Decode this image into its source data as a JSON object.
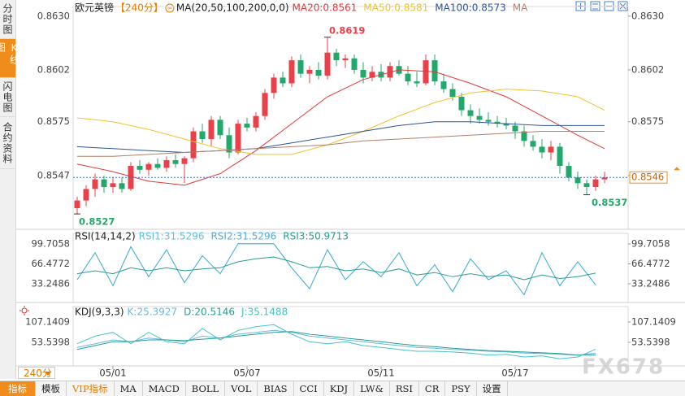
{
  "sidebar": {
    "tabs": [
      "分时图",
      "K线图",
      "闪电图",
      "合约资料"
    ],
    "active": 1
  },
  "period_selector": "240分",
  "toolbar": {
    "items": [
      "指标",
      "模板",
      "VIP指标",
      "MA",
      "MACD",
      "BOLL",
      "VOL",
      "BIAS",
      "CCI",
      "KDJ",
      "LW&",
      "RSI",
      "CR",
      "PSY",
      "设置"
    ],
    "active": 0
  },
  "watermark": "FX678",
  "chart_data": [
    {
      "type": "candlestick",
      "title": "欧元英镑",
      "period": "【240分】",
      "indicator": "MA(20,50,100,200,0,0)",
      "xlim": [
        -0.5,
        59.5
      ],
      "xticks": [
        {
          "value": 4,
          "label": "05/01"
        },
        {
          "value": 19,
          "label": "05/07"
        },
        {
          "value": 34,
          "label": "05/11"
        },
        {
          "value": 49,
          "label": "05/17"
        }
      ],
      "ylim": [
        0.8519,
        0.8635
      ],
      "yticks": [
        0.8547,
        0.8575,
        0.8602,
        {
          "value": 0.863,
          "label": "0.8630"
        }
      ],
      "up_color": "#e8414a",
      "down_color": "#23a86b",
      "open": [
        0.853,
        0.8534,
        0.854,
        0.8545,
        0.8541,
        0.8543,
        0.854,
        0.8552,
        0.855,
        0.8553,
        0.8551,
        0.8555,
        0.8553,
        0.8556,
        0.857,
        0.8566,
        0.8576,
        0.8568,
        0.8559,
        0.8574,
        0.8572,
        0.8578,
        0.859,
        0.8598,
        0.8595,
        0.8607,
        0.86,
        0.8602,
        0.8599,
        0.8611,
        0.8607,
        0.8608,
        0.8602,
        0.8598,
        0.8601,
        0.8598,
        0.8604,
        0.86,
        0.8596,
        0.8595,
        0.8607,
        0.8596,
        0.8592,
        0.8588,
        0.8581,
        0.8578,
        0.8576,
        0.8575,
        0.8574,
        0.8573,
        0.857,
        0.8565,
        0.8562,
        0.8559,
        0.8562,
        0.8552,
        0.8546,
        0.8543,
        0.8541,
        0.8545
      ],
      "high": [
        0.8536,
        0.8542,
        0.8548,
        0.8547,
        0.8546,
        0.8546,
        0.8554,
        0.8555,
        0.8554,
        0.8556,
        0.8557,
        0.8558,
        0.8557,
        0.8572,
        0.8574,
        0.8578,
        0.8578,
        0.8572,
        0.8576,
        0.8577,
        0.858,
        0.8592,
        0.86,
        0.8601,
        0.8609,
        0.861,
        0.8604,
        0.8606,
        0.8619,
        0.8613,
        0.861,
        0.861,
        0.8606,
        0.8604,
        0.8605,
        0.8606,
        0.8607,
        0.8604,
        0.8601,
        0.861,
        0.861,
        0.86,
        0.8595,
        0.859,
        0.8584,
        0.8582,
        0.858,
        0.8578,
        0.8577,
        0.8575,
        0.8573,
        0.8568,
        0.8566,
        0.8565,
        0.8564,
        0.8554,
        0.8549,
        0.8545,
        0.8547,
        0.8549
      ],
      "low": [
        0.8527,
        0.8531,
        0.8536,
        0.8538,
        0.8538,
        0.8538,
        0.8539,
        0.8548,
        0.8547,
        0.855,
        0.8549,
        0.8551,
        0.8543,
        0.8554,
        0.8564,
        0.8562,
        0.8566,
        0.8556,
        0.8558,
        0.857,
        0.857,
        0.8576,
        0.8587,
        0.8593,
        0.8593,
        0.8598,
        0.8595,
        0.8597,
        0.8597,
        0.8604,
        0.8603,
        0.86,
        0.8595,
        0.8596,
        0.8596,
        0.8596,
        0.8599,
        0.8594,
        0.8593,
        0.8594,
        0.8594,
        0.859,
        0.8586,
        0.8578,
        0.8574,
        0.8574,
        0.8573,
        0.8572,
        0.8571,
        0.8566,
        0.8562,
        0.856,
        0.8556,
        0.8555,
        0.8548,
        0.8544,
        0.854,
        0.8537,
        0.8539,
        0.8543
      ],
      "close": [
        0.8534,
        0.854,
        0.8545,
        0.8541,
        0.8543,
        0.854,
        0.8552,
        0.855,
        0.8553,
        0.8551,
        0.8555,
        0.8553,
        0.8556,
        0.857,
        0.8566,
        0.8576,
        0.8568,
        0.8559,
        0.8574,
        0.8572,
        0.8578,
        0.859,
        0.8598,
        0.8595,
        0.8607,
        0.86,
        0.8602,
        0.8599,
        0.8611,
        0.8607,
        0.8608,
        0.8602,
        0.8598,
        0.8601,
        0.8598,
        0.8604,
        0.86,
        0.8596,
        0.8595,
        0.8607,
        0.8596,
        0.8592,
        0.8588,
        0.8581,
        0.8578,
        0.8576,
        0.8575,
        0.8574,
        0.8573,
        0.857,
        0.8565,
        0.8562,
        0.8559,
        0.8562,
        0.8552,
        0.8546,
        0.8543,
        0.8541,
        0.8545,
        0.8546
      ],
      "series": [
        {
          "name": "MA20:0.8561",
          "color": "#e03a3a",
          "x": [
            0,
            4,
            8,
            12,
            16,
            20,
            24,
            28,
            32,
            36,
            40,
            44,
            48,
            52,
            56,
            59
          ],
          "values": [
            0.8553,
            0.8549,
            0.8544,
            0.8542,
            0.8548,
            0.856,
            0.8574,
            0.8588,
            0.8597,
            0.8602,
            0.8601,
            0.8595,
            0.8588,
            0.8578,
            0.8568,
            0.8561
          ]
        },
        {
          "name": "MA50:0.8581",
          "color": "#f2c12e",
          "x": [
            0,
            4,
            8,
            12,
            16,
            20,
            24,
            28,
            32,
            36,
            40,
            44,
            48,
            52,
            56,
            59
          ],
          "values": [
            0.8577,
            0.8575,
            0.8571,
            0.8566,
            0.8561,
            0.8558,
            0.8558,
            0.8563,
            0.857,
            0.8578,
            0.8585,
            0.859,
            0.8592,
            0.8591,
            0.8588,
            0.8581
          ]
        },
        {
          "name": "MA100:0.8573",
          "color": "#2f5596",
          "x": [
            0,
            4,
            8,
            12,
            16,
            20,
            24,
            28,
            32,
            36,
            40,
            44,
            48,
            52,
            56,
            59
          ],
          "values": [
            0.8562,
            0.8561,
            0.856,
            0.8559,
            0.856,
            0.8561,
            0.8564,
            0.8567,
            0.857,
            0.8573,
            0.8575,
            0.8575,
            0.8574,
            0.8573,
            0.8573,
            0.8573
          ]
        },
        {
          "name": "MA",
          "color": "#b0806a",
          "x": [
            0,
            4,
            8,
            12,
            16,
            20,
            24,
            28,
            32,
            36,
            40,
            44,
            48,
            52,
            56,
            59
          ],
          "values": [
            0.8557,
            0.8557,
            0.8558,
            0.8559,
            0.856,
            0.8561,
            0.8562,
            0.8563,
            0.8565,
            0.8566,
            0.8567,
            0.8568,
            0.8569,
            0.857,
            0.857,
            0.857
          ]
        }
      ],
      "last_price": 0.8546,
      "annotations": [
        {
          "x": 28,
          "value": 0.8619,
          "color": "#e8414a"
        },
        {
          "x": 0,
          "value": 0.8527,
          "color": "#23a86b"
        },
        {
          "x": 57,
          "value": 0.8537,
          "color": "#23a86b"
        }
      ]
    },
    {
      "type": "line",
      "title": "RSI(14,14,2)",
      "xlim": [
        -0.5,
        59.5
      ],
      "x": [
        0,
        2,
        4,
        6,
        8,
        10,
        12,
        14,
        16,
        18,
        20,
        22,
        24,
        26,
        28,
        30,
        32,
        34,
        36,
        38,
        40,
        42,
        44,
        46,
        48,
        50,
        52,
        54,
        56,
        58
      ],
      "ylim": [
        2.06,
        117.33
      ],
      "yticks": [
        33.2486,
        66.4772,
        99.7058
      ],
      "series": [
        {
          "name": "RSI1:31.5296",
          "color": "#5cc3e0",
          "values": [
            40,
            85,
            30,
            95,
            45,
            90,
            35,
            80,
            50,
            100,
            100,
            100,
            60,
            25,
            90,
            40,
            70,
            45,
            85,
            30,
            65,
            20,
            75,
            40,
            55,
            15,
            85,
            30,
            70,
            31.5
          ]
        },
        {
          "name": "RSI2:31.5296",
          "color": "#4fb0d6",
          "values": [
            40,
            85,
            30,
            95,
            45,
            90,
            35,
            80,
            50,
            100,
            100,
            100,
            60,
            25,
            90,
            40,
            70,
            45,
            85,
            30,
            65,
            20,
            75,
            40,
            55,
            15,
            85,
            30,
            70,
            31.5
          ]
        },
        {
          "name": "RSI3:50.9713",
          "color": "#2a9d8f",
          "values": [
            50,
            55,
            50,
            60,
            55,
            60,
            55,
            58,
            60,
            70,
            75,
            78,
            70,
            60,
            62,
            55,
            58,
            52,
            58,
            48,
            52,
            45,
            50,
            45,
            48,
            40,
            48,
            42,
            45,
            51
          ]
        }
      ]
    },
    {
      "type": "line",
      "title": "KDJ(9,3,3)",
      "xlim": [
        -0.5,
        59.5
      ],
      "x": [
        0,
        2,
        4,
        6,
        8,
        10,
        12,
        14,
        16,
        18,
        20,
        22,
        24,
        26,
        28,
        30,
        32,
        34,
        36,
        38,
        40,
        42,
        44,
        46,
        48,
        50,
        52,
        54,
        56,
        58
      ],
      "ylim": [
        -8.6,
        147.9
      ],
      "yticks": [
        53.5398,
        107.1409
      ],
      "series": [
        {
          "name": "K:25.3927",
          "color": "#6ab7e3",
          "values": [
            40,
            50,
            60,
            55,
            65,
            60,
            55,
            70,
            65,
            75,
            80,
            85,
            80,
            70,
            65,
            60,
            55,
            50,
            45,
            40,
            38,
            35,
            33,
            30,
            28,
            25,
            24,
            22,
            20,
            25.4
          ]
        },
        {
          "name": "D:20.5146",
          "color": "#2a9d8f",
          "values": [
            35,
            45,
            55,
            55,
            60,
            60,
            58,
            62,
            65,
            70,
            75,
            80,
            82,
            75,
            70,
            65,
            60,
            55,
            50,
            45,
            42,
            38,
            35,
            32,
            30,
            28,
            26,
            24,
            20,
            20.5
          ]
        },
        {
          "name": "J:35.1488",
          "color": "#48c0c8",
          "values": [
            50,
            70,
            80,
            50,
            80,
            55,
            50,
            90,
            60,
            85,
            95,
            100,
            75,
            55,
            50,
            55,
            45,
            40,
            35,
            30,
            30,
            28,
            25,
            20,
            22,
            15,
            18,
            10,
            15,
            35.1
          ]
        }
      ]
    }
  ]
}
